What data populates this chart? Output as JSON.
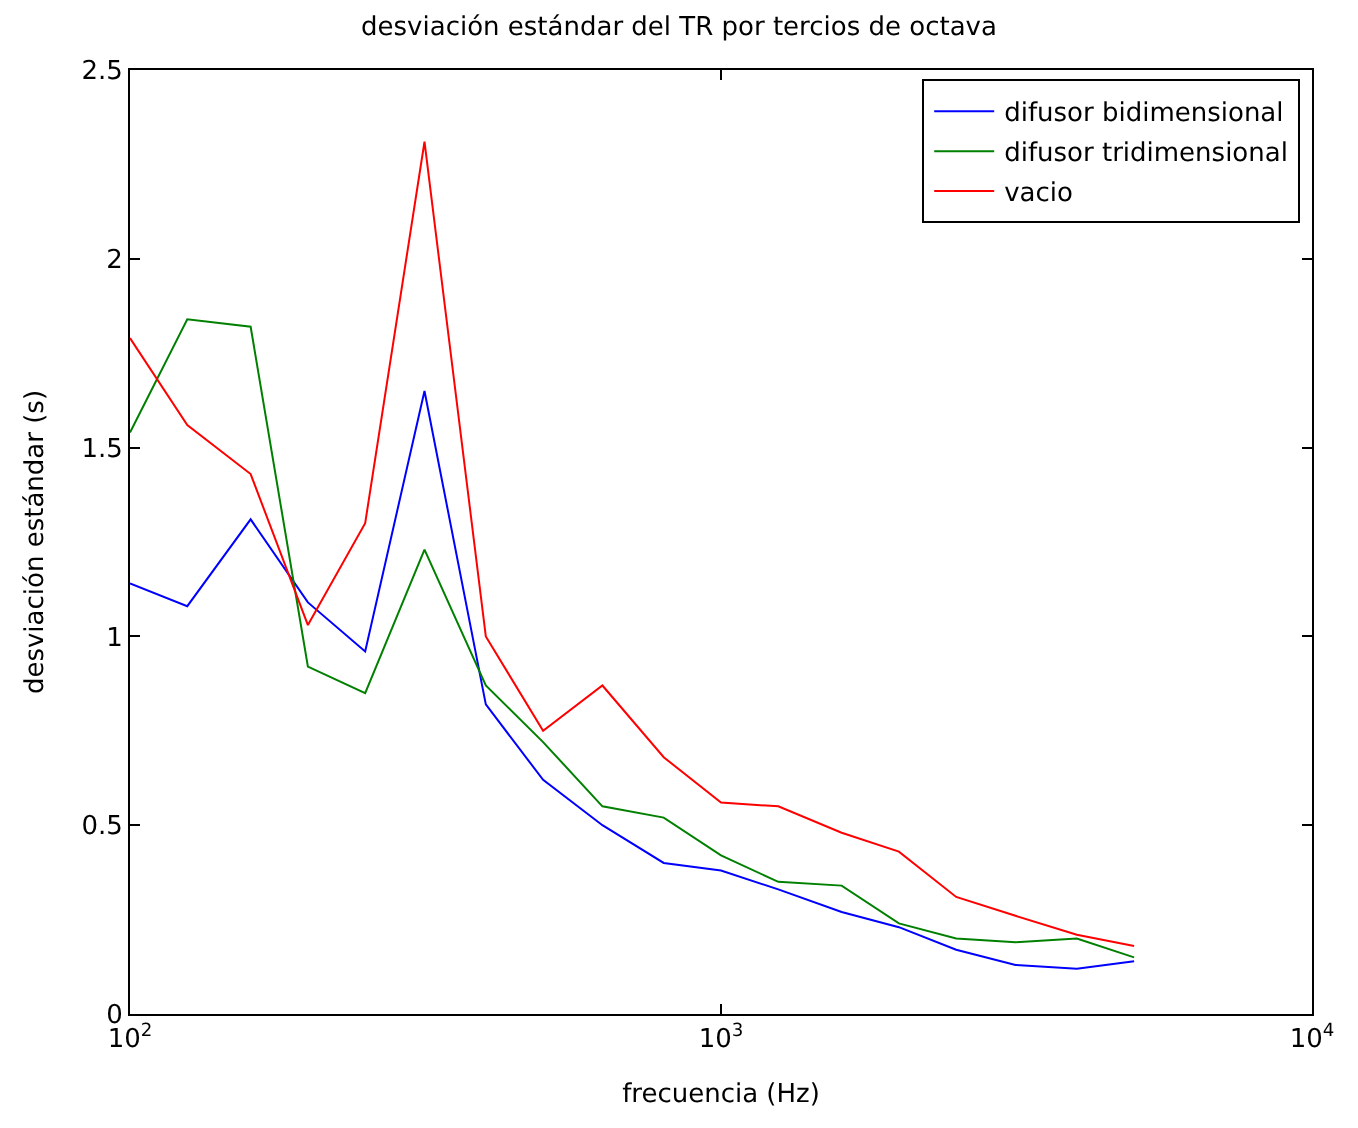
{
  "chart_data": {
    "type": "line",
    "title": "desviación estándar del TR por tercios de octava",
    "xlabel": "frecuencia (Hz)",
    "ylabel": "desviación estándar (s)",
    "x": [
      100,
      125,
      160,
      200,
      250,
      315,
      400,
      500,
      630,
      800,
      1000,
      1250,
      1600,
      2000,
      2500,
      3150,
      4000,
      5000
    ],
    "series": [
      {
        "name": "difusor bidimensional",
        "color": "#0000ff",
        "values": [
          1.14,
          1.08,
          1.31,
          1.09,
          0.96,
          1.65,
          0.82,
          0.62,
          0.5,
          0.4,
          0.38,
          0.33,
          0.27,
          0.23,
          0.17,
          0.13,
          0.12,
          0.14
        ]
      },
      {
        "name": "difusor tridimensional",
        "color": "#008000",
        "values": [
          1.54,
          1.84,
          1.82,
          0.92,
          0.85,
          1.23,
          0.87,
          0.72,
          0.55,
          0.52,
          0.42,
          0.35,
          0.34,
          0.24,
          0.2,
          0.19,
          0.2,
          0.15
        ]
      },
      {
        "name": "vacio",
        "color": "#ff0000",
        "values": [
          1.79,
          1.56,
          1.43,
          1.03,
          1.3,
          2.31,
          1.0,
          0.75,
          0.87,
          0.68,
          0.56,
          0.55,
          0.48,
          0.43,
          0.31,
          0.26,
          0.21,
          0.18
        ]
      }
    ],
    "log": "x",
    "xlim": [
      100,
      10000
    ],
    "xticks": [
      {
        "value": 100,
        "label": "10$^{2}$"
      },
      {
        "value": 1000,
        "label": "10$^{3}$"
      },
      {
        "value": 10000,
        "label": "10$^{4}$"
      }
    ],
    "ylim": [
      0,
      2.5
    ],
    "yticks": [
      0,
      0.5,
      1,
      1.5,
      2,
      2.5
    ],
    "legend": "top right",
    "line_style": "solid",
    "marker": "none"
  }
}
